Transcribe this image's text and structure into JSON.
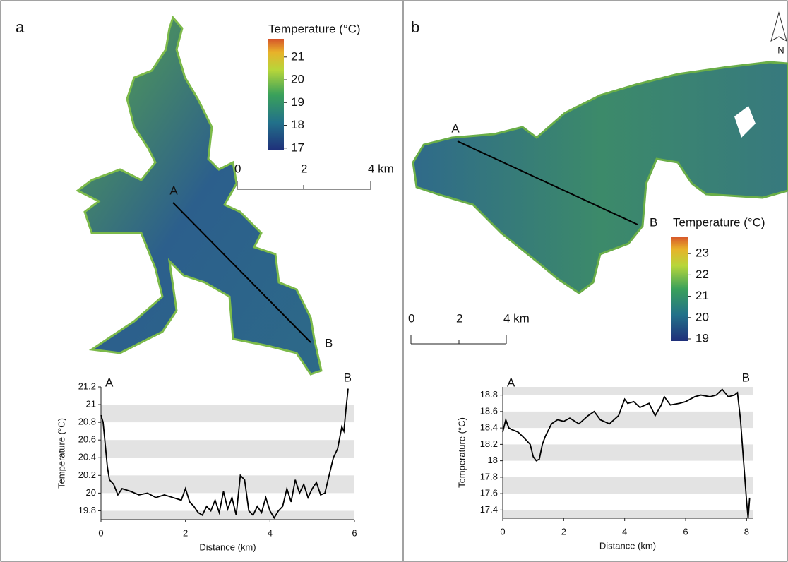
{
  "panels": [
    {
      "label": "a",
      "legend": {
        "title": "Temperature (°C)",
        "ticks": [
          21,
          20,
          19,
          18,
          17
        ],
        "clim": [
          16.9,
          21.8
        ]
      },
      "scale_bar": [
        "0",
        "2",
        "4 km"
      ],
      "transect": [
        "A",
        "B"
      ]
    },
    {
      "label": "b",
      "north": "N",
      "legend": {
        "title": "Temperature (°C)",
        "ticks": [
          23,
          22,
          21,
          20,
          19
        ],
        "clim": [
          18.9,
          23.8
        ]
      },
      "scale_bar": [
        "0",
        "2",
        "4 km"
      ],
      "transect": [
        "A",
        "B"
      ]
    }
  ],
  "chart_data": [
    {
      "type": "line",
      "x_label": "Distance (km)",
      "y_label": "Temperature (°C)",
      "color": "#000000",
      "grid": "bands",
      "annotations": [
        "A",
        "B"
      ],
      "xlim": [
        0,
        6
      ],
      "xticks": [
        0,
        2,
        4,
        6
      ],
      "ylim": [
        19.7,
        21.2
      ],
      "yticks": [
        19.8,
        20,
        20.2,
        20.4,
        20.6,
        20.8,
        21,
        21.2
      ],
      "x": [
        0,
        0.05,
        0.1,
        0.15,
        0.2,
        0.3,
        0.4,
        0.5,
        0.7,
        0.9,
        1.1,
        1.3,
        1.5,
        1.7,
        1.9,
        2.0,
        2.1,
        2.2,
        2.3,
        2.4,
        2.5,
        2.6,
        2.7,
        2.8,
        2.9,
        3.0,
        3.1,
        3.2,
        3.3,
        3.4,
        3.5,
        3.6,
        3.7,
        3.8,
        3.9,
        4.0,
        4.1,
        4.2,
        4.3,
        4.4,
        4.5,
        4.6,
        4.7,
        4.8,
        4.9,
        5.0,
        5.1,
        5.2,
        5.3,
        5.4,
        5.5,
        5.6,
        5.7,
        5.75,
        5.8,
        5.85
      ],
      "values": [
        20.88,
        20.8,
        20.55,
        20.3,
        20.15,
        20.1,
        19.98,
        20.05,
        20.02,
        19.98,
        20.0,
        19.95,
        19.98,
        19.95,
        19.92,
        20.05,
        19.9,
        19.85,
        19.78,
        19.75,
        19.85,
        19.8,
        19.92,
        19.78,
        20.02,
        19.82,
        19.95,
        19.75,
        20.2,
        20.15,
        19.8,
        19.75,
        19.85,
        19.78,
        19.95,
        19.8,
        19.72,
        19.8,
        19.85,
        20.05,
        19.9,
        20.15,
        20.0,
        20.1,
        19.95,
        20.05,
        20.12,
        19.98,
        20.0,
        20.2,
        20.4,
        20.5,
        20.75,
        20.7,
        20.95,
        21.18
      ]
    },
    {
      "type": "line",
      "x_label": "Distance (km)",
      "y_label": "Temperature (°C)",
      "color": "#000000",
      "grid": "bands",
      "annotations": [
        "A",
        "B"
      ],
      "xlim": [
        0,
        8.2
      ],
      "xticks": [
        0,
        2,
        4,
        6,
        8
      ],
      "ylim": [
        17.3,
        18.9
      ],
      "yticks": [
        17.4,
        17.6,
        17.8,
        18,
        18.2,
        18.4,
        18.6,
        18.8
      ],
      "x": [
        0,
        0.1,
        0.2,
        0.3,
        0.5,
        0.7,
        0.9,
        1.0,
        1.1,
        1.2,
        1.3,
        1.4,
        1.6,
        1.8,
        2.0,
        2.2,
        2.5,
        2.8,
        3.0,
        3.2,
        3.5,
        3.8,
        4.0,
        4.1,
        4.3,
        4.5,
        4.8,
        5.0,
        5.2,
        5.3,
        5.5,
        5.8,
        6.0,
        6.3,
        6.5,
        6.8,
        7.0,
        7.2,
        7.4,
        7.6,
        7.7,
        7.8,
        7.9,
        8.0,
        8.05,
        8.1
      ],
      "values": [
        18.35,
        18.5,
        18.4,
        18.38,
        18.35,
        18.28,
        18.2,
        18.05,
        18.0,
        18.02,
        18.2,
        18.3,
        18.45,
        18.5,
        18.48,
        18.52,
        18.45,
        18.55,
        18.6,
        18.5,
        18.45,
        18.55,
        18.75,
        18.7,
        18.72,
        18.65,
        18.7,
        18.55,
        18.68,
        18.78,
        18.68,
        18.7,
        18.72,
        18.78,
        18.8,
        18.78,
        18.8,
        18.87,
        18.78,
        18.8,
        18.83,
        18.5,
        18.0,
        17.5,
        17.3,
        17.55
      ]
    }
  ]
}
